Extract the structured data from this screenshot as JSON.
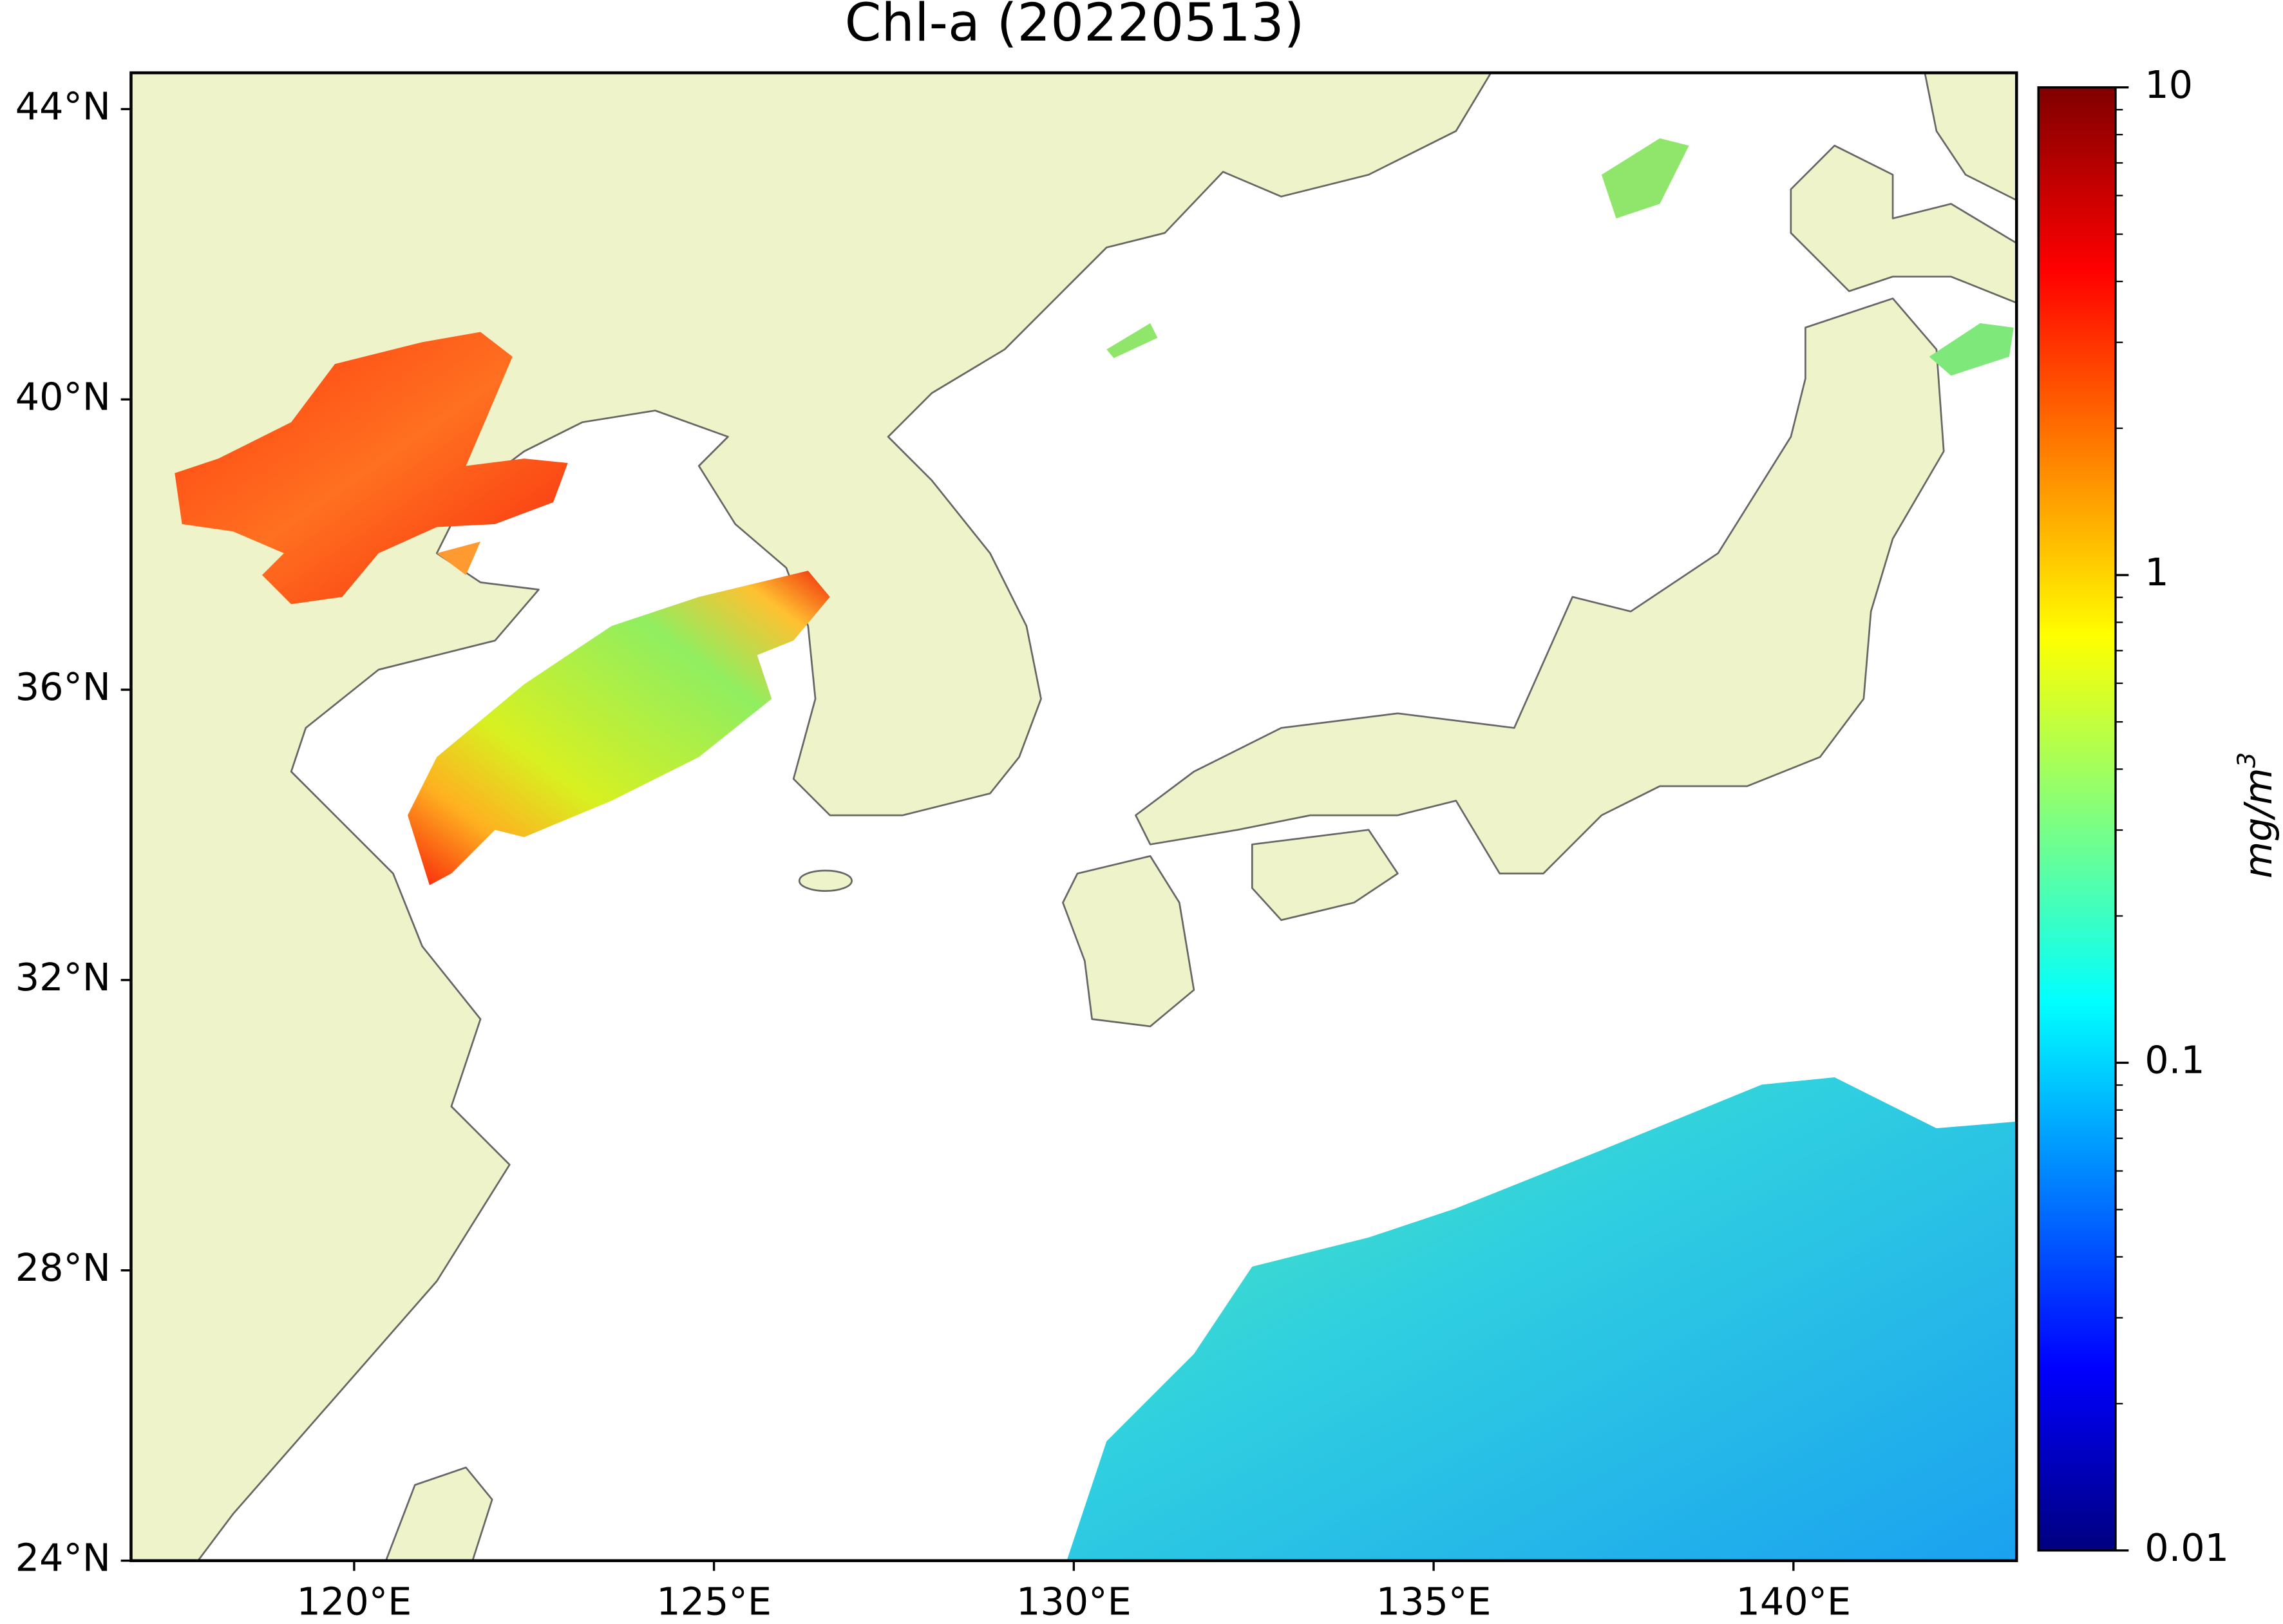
{
  "title": "Chl-a (20220513)",
  "map": {
    "xlim": [
      116.9,
      143.1
    ],
    "ylim": [
      24,
      44.5
    ],
    "xticks": [
      {
        "value": 120,
        "label": "120°E"
      },
      {
        "value": 125,
        "label": "125°E"
      },
      {
        "value": 130,
        "label": "130°E"
      },
      {
        "value": 135,
        "label": "135°E"
      },
      {
        "value": 140,
        "label": "140°E"
      }
    ],
    "yticks": [
      {
        "value": 24,
        "label": "24°N"
      },
      {
        "value": 28,
        "label": "28°N"
      },
      {
        "value": 32,
        "label": "32°N"
      },
      {
        "value": 36,
        "label": "36°N"
      },
      {
        "value": 40,
        "label": "40°N"
      },
      {
        "value": 44,
        "label": "44°N"
      }
    ],
    "land_color": "#eff3c9",
    "coast_color": "#666666"
  },
  "colorbar": {
    "clim": [
      0.01,
      10
    ],
    "scale": "log",
    "ticks": [
      0.01,
      0.1,
      1,
      10
    ],
    "minor_ticks": true,
    "colormap": "jet",
    "label": {
      "text": "mg/m",
      "superscript": "3"
    }
  }
}
